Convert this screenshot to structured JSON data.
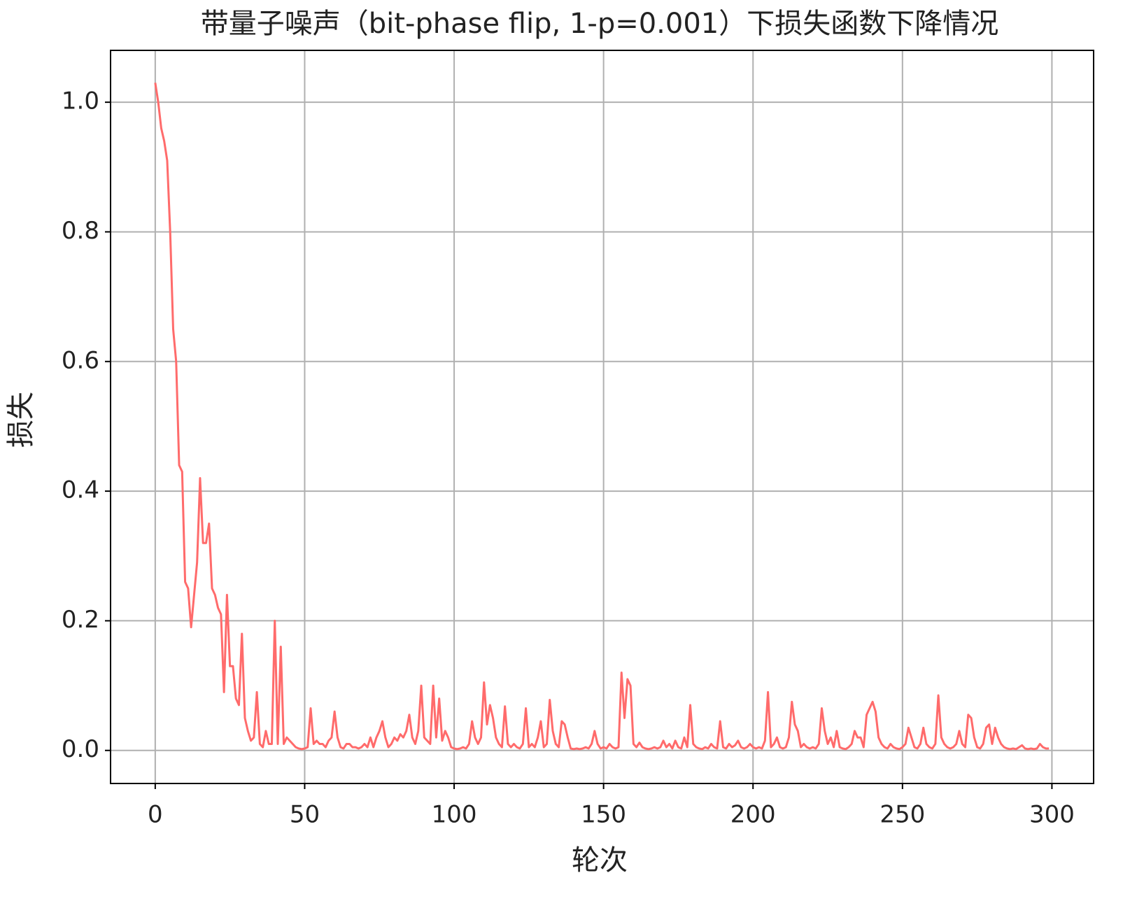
{
  "chart_data": {
    "type": "line",
    "title": "带量子噪声（bit-phase flip, 1-p=0.001）下损失函数下降情况",
    "xlabel": "轮次",
    "ylabel": "损失",
    "color": "#ff6b6b",
    "grid": true,
    "xlim": [
      -14.95,
      313.95
    ],
    "ylim": [
      -0.051,
      1.08
    ],
    "xticks": [
      0,
      50,
      100,
      150,
      200,
      250,
      300
    ],
    "yticks": [
      {
        "value": 0,
        "label": "0.0"
      },
      0.2,
      0.4,
      0.6,
      0.8,
      {
        "value": 1,
        "label": "1.0"
      }
    ],
    "x": [
      0,
      1,
      2,
      3,
      4,
      5,
      6,
      7,
      8,
      9,
      10,
      11,
      12,
      13,
      14,
      15,
      16,
      17,
      18,
      19,
      20,
      21,
      22,
      23,
      24,
      25,
      26,
      27,
      28,
      29,
      30,
      31,
      32,
      33,
      34,
      35,
      36,
      37,
      38,
      39,
      40,
      41,
      42,
      43,
      44,
      45,
      46,
      47,
      48,
      49,
      50,
      51,
      52,
      53,
      54,
      55,
      56,
      57,
      58,
      59,
      60,
      61,
      62,
      63,
      64,
      65,
      66,
      67,
      68,
      69,
      70,
      71,
      72,
      73,
      74,
      75,
      76,
      77,
      78,
      79,
      80,
      81,
      82,
      83,
      84,
      85,
      86,
      87,
      88,
      89,
      90,
      91,
      92,
      93,
      94,
      95,
      96,
      97,
      98,
      99,
      100,
      101,
      102,
      103,
      104,
      105,
      106,
      107,
      108,
      109,
      110,
      111,
      112,
      113,
      114,
      115,
      116,
      117,
      118,
      119,
      120,
      121,
      122,
      123,
      124,
      125,
      126,
      127,
      128,
      129,
      130,
      131,
      132,
      133,
      134,
      135,
      136,
      137,
      138,
      139,
      140,
      141,
      142,
      143,
      144,
      145,
      146,
      147,
      148,
      149,
      150,
      151,
      152,
      153,
      154,
      155,
      156,
      157,
      158,
      159,
      160,
      161,
      162,
      163,
      164,
      165,
      166,
      167,
      168,
      169,
      170,
      171,
      172,
      173,
      174,
      175,
      176,
      177,
      178,
      179,
      180,
      181,
      182,
      183,
      184,
      185,
      186,
      187,
      188,
      189,
      190,
      191,
      192,
      193,
      194,
      195,
      196,
      197,
      198,
      199,
      200,
      201,
      202,
      203,
      204,
      205,
      206,
      207,
      208,
      209,
      210,
      211,
      212,
      213,
      214,
      215,
      216,
      217,
      218,
      219,
      220,
      221,
      222,
      223,
      224,
      225,
      226,
      227,
      228,
      229,
      230,
      231,
      232,
      233,
      234,
      235,
      236,
      237,
      238,
      239,
      240,
      241,
      242,
      243,
      244,
      245,
      246,
      247,
      248,
      249,
      250,
      251,
      252,
      253,
      254,
      255,
      256,
      257,
      258,
      259,
      260,
      261,
      262,
      263,
      264,
      265,
      266,
      267,
      268,
      269,
      270,
      271,
      272,
      273,
      274,
      275,
      276,
      277,
      278,
      279,
      280,
      281,
      282,
      283,
      284,
      285,
      286,
      287,
      288,
      289,
      290,
      291,
      292,
      293,
      294,
      295,
      296,
      297,
      298,
      299
    ],
    "values": [
      1.03,
      1.0,
      0.96,
      0.94,
      0.91,
      0.8,
      0.65,
      0.6,
      0.44,
      0.43,
      0.26,
      0.25,
      0.19,
      0.24,
      0.29,
      0.42,
      0.32,
      0.32,
      0.35,
      0.25,
      0.24,
      0.22,
      0.21,
      0.09,
      0.24,
      0.13,
      0.13,
      0.08,
      0.07,
      0.18,
      0.05,
      0.03,
      0.015,
      0.02,
      0.09,
      0.01,
      0.005,
      0.03,
      0.01,
      0.01,
      0.2,
      0.01,
      0.16,
      0.01,
      0.02,
      0.015,
      0.01,
      0.005,
      0.003,
      0.002,
      0.003,
      0.005,
      0.065,
      0.01,
      0.015,
      0.01,
      0.01,
      0.005,
      0.015,
      0.02,
      0.06,
      0.02,
      0.005,
      0.003,
      0.01,
      0.01,
      0.005,
      0.005,
      0.003,
      0.005,
      0.01,
      0.005,
      0.02,
      0.005,
      0.02,
      0.03,
      0.045,
      0.02,
      0.005,
      0.01,
      0.02,
      0.015,
      0.025,
      0.02,
      0.03,
      0.055,
      0.02,
      0.01,
      0.03,
      0.1,
      0.02,
      0.015,
      0.01,
      0.1,
      0.02,
      0.08,
      0.015,
      0.03,
      0.02,
      0.005,
      0.003,
      0.002,
      0.003,
      0.005,
      0.003,
      0.01,
      0.045,
      0.02,
      0.01,
      0.02,
      0.105,
      0.04,
      0.07,
      0.05,
      0.02,
      0.01,
      0.005,
      0.068,
      0.01,
      0.005,
      0.01,
      0.005,
      0.003,
      0.01,
      0.065,
      0.005,
      0.01,
      0.005,
      0.02,
      0.045,
      0.005,
      0.01,
      0.078,
      0.03,
      0.01,
      0.005,
      0.045,
      0.04,
      0.02,
      0.003,
      0.002,
      0.003,
      0.002,
      0.003,
      0.005,
      0.003,
      0.01,
      0.03,
      0.01,
      0.003,
      0.005,
      0.003,
      0.01,
      0.005,
      0.003,
      0.005,
      0.12,
      0.05,
      0.11,
      0.1,
      0.01,
      0.005,
      0.012,
      0.005,
      0.003,
      0.002,
      0.003,
      0.005,
      0.003,
      0.005,
      0.015,
      0.005,
      0.01,
      0.003,
      0.015,
      0.005,
      0.003,
      0.02,
      0.005,
      0.07,
      0.01,
      0.005,
      0.003,
      0.002,
      0.005,
      0.003,
      0.01,
      0.005,
      0.003,
      0.045,
      0.005,
      0.003,
      0.01,
      0.005,
      0.008,
      0.015,
      0.005,
      0.003,
      0.005,
      0.01,
      0.005,
      0.003,
      0.005,
      0.003,
      0.015,
      0.09,
      0.005,
      0.01,
      0.02,
      0.005,
      0.003,
      0.005,
      0.02,
      0.075,
      0.04,
      0.03,
      0.005,
      0.01,
      0.005,
      0.003,
      0.005,
      0.003,
      0.01,
      0.065,
      0.03,
      0.01,
      0.02,
      0.005,
      0.03,
      0.005,
      0.003,
      0.002,
      0.005,
      0.01,
      0.03,
      0.02,
      0.02,
      0.005,
      0.055,
      0.065,
      0.075,
      0.06,
      0.02,
      0.01,
      0.005,
      0.003,
      0.01,
      0.005,
      0.003,
      0.002,
      0.005,
      0.01,
      0.035,
      0.02,
      0.005,
      0.003,
      0.01,
      0.035,
      0.01,
      0.005,
      0.003,
      0.01,
      0.085,
      0.02,
      0.01,
      0.005,
      0.003,
      0.005,
      0.01,
      0.03,
      0.01,
      0.005,
      0.055,
      0.05,
      0.02,
      0.005,
      0.003,
      0.01,
      0.035,
      0.04,
      0.01,
      0.035,
      0.02,
      0.01,
      0.005,
      0.003,
      0.002,
      0.003,
      0.002,
      0.005,
      0.008,
      0.003,
      0.002,
      0.003,
      0.002,
      0.003,
      0.01,
      0.005,
      0.003,
      0.003
    ]
  }
}
